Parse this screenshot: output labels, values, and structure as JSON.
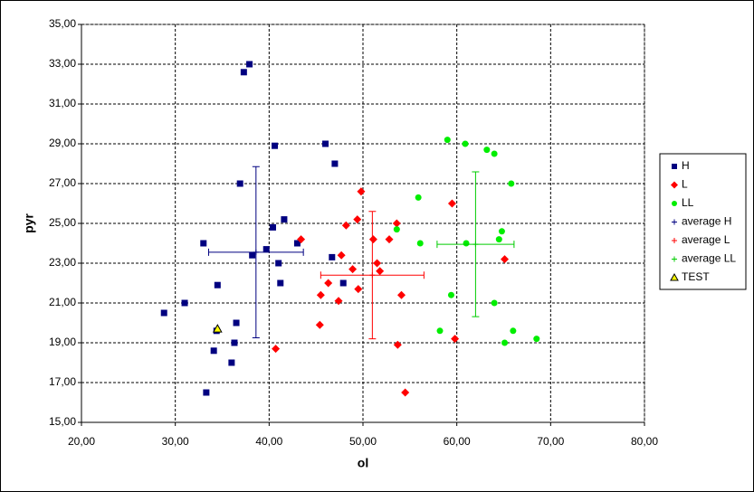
{
  "chart_data": {
    "type": "scatter",
    "xlabel": "ol",
    "ylabel": "pyr",
    "xlim": [
      20,
      80
    ],
    "xticks": [
      {
        "value": 20,
        "label": "20,00"
      },
      {
        "value": 30,
        "label": "30,00"
      },
      {
        "value": 40,
        "label": "40,00"
      },
      {
        "value": 50,
        "label": "50,00"
      },
      {
        "value": 60,
        "label": "60,00"
      },
      {
        "value": 70,
        "label": "70,00"
      },
      {
        "value": 80,
        "label": "80,00"
      }
    ],
    "ylim": [
      15,
      35
    ],
    "yticks": [
      {
        "value": 15,
        "label": "15,00"
      },
      {
        "value": 17,
        "label": "17,00"
      },
      {
        "value": 19,
        "label": "19,00"
      },
      {
        "value": 21,
        "label": "21,00"
      },
      {
        "value": 23,
        "label": "23,00"
      },
      {
        "value": 25,
        "label": "25,00"
      },
      {
        "value": 27,
        "label": "27,00"
      },
      {
        "value": 29,
        "label": "29,00"
      },
      {
        "value": 31,
        "label": "31,00"
      },
      {
        "value": 33,
        "label": "33,00"
      },
      {
        "value": 35,
        "label": "35,00"
      }
    ],
    "grid": true,
    "legend": "right",
    "series": [
      {
        "name": "H",
        "color": "#000080",
        "marker": "square",
        "x": [
          37.9,
          37.3,
          40.6,
          46.0,
          47.0,
          36.9,
          41.6,
          40.4,
          33.0,
          39.7,
          43.0,
          38.2,
          41.0,
          46.7,
          41.2,
          47.9,
          34.5,
          31.0,
          28.8,
          36.5,
          34.4,
          36.3,
          34.1,
          36.0,
          33.3
        ],
        "y": [
          33.0,
          32.6,
          28.9,
          29.0,
          28.0,
          27.0,
          25.2,
          24.8,
          24.0,
          23.7,
          24.0,
          23.4,
          23.0,
          23.3,
          22.0,
          22.0,
          21.9,
          21.0,
          20.5,
          20.0,
          19.6,
          19.0,
          18.6,
          18.0,
          16.5
        ]
      },
      {
        "name": "L",
        "color": "#ff0000",
        "marker": "diamond",
        "x": [
          49.8,
          59.5,
          48.2,
          49.4,
          53.6,
          43.4,
          51.1,
          52.8,
          47.7,
          65.1,
          51.5,
          51.8,
          48.9,
          49.5,
          45.5,
          46.3,
          47.4,
          54.1,
          45.4,
          59.8,
          53.7,
          40.7,
          54.5
        ],
        "y": [
          26.6,
          26.0,
          24.9,
          25.2,
          25.0,
          24.2,
          24.2,
          24.2,
          23.4,
          23.2,
          23.0,
          22.6,
          22.7,
          21.7,
          21.4,
          22.0,
          21.1,
          21.4,
          19.9,
          19.2,
          18.9,
          18.7,
          16.5
        ]
      },
      {
        "name": "LL",
        "color": "#00ee00",
        "marker": "circle",
        "x": [
          59.0,
          60.9,
          63.2,
          64.0,
          65.8,
          55.9,
          53.6,
          64.8,
          64.5,
          56.1,
          61.0,
          59.4,
          64.0,
          58.2,
          66.0,
          68.5,
          65.1
        ],
        "y": [
          29.2,
          29.0,
          28.7,
          28.5,
          27.0,
          26.3,
          24.7,
          24.6,
          24.2,
          24.0,
          24.0,
          21.4,
          21.0,
          19.6,
          19.6,
          19.2,
          19.0
        ]
      },
      {
        "name": "average H",
        "color": "#000080",
        "marker": "plus",
        "x": [
          38.6
        ],
        "y": [
          23.55
        ],
        "x_error": [
          5.05
        ],
        "y_error": [
          4.3
        ]
      },
      {
        "name": "average L",
        "color": "#ff0000",
        "marker": "plus",
        "x": [
          51.0
        ],
        "y": [
          22.4
        ],
        "x_error": [
          5.5
        ],
        "y_error": [
          3.2
        ]
      },
      {
        "name": "average LL",
        "color": "#00cc00",
        "marker": "plus",
        "x": [
          62.0
        ],
        "y": [
          23.95
        ],
        "x_error": [
          4.1
        ],
        "y_error": [
          3.64
        ]
      },
      {
        "name": "TEST",
        "color": "#ffff00",
        "marker": "triangle",
        "x": [
          34.5
        ],
        "y": [
          19.7
        ]
      }
    ]
  }
}
